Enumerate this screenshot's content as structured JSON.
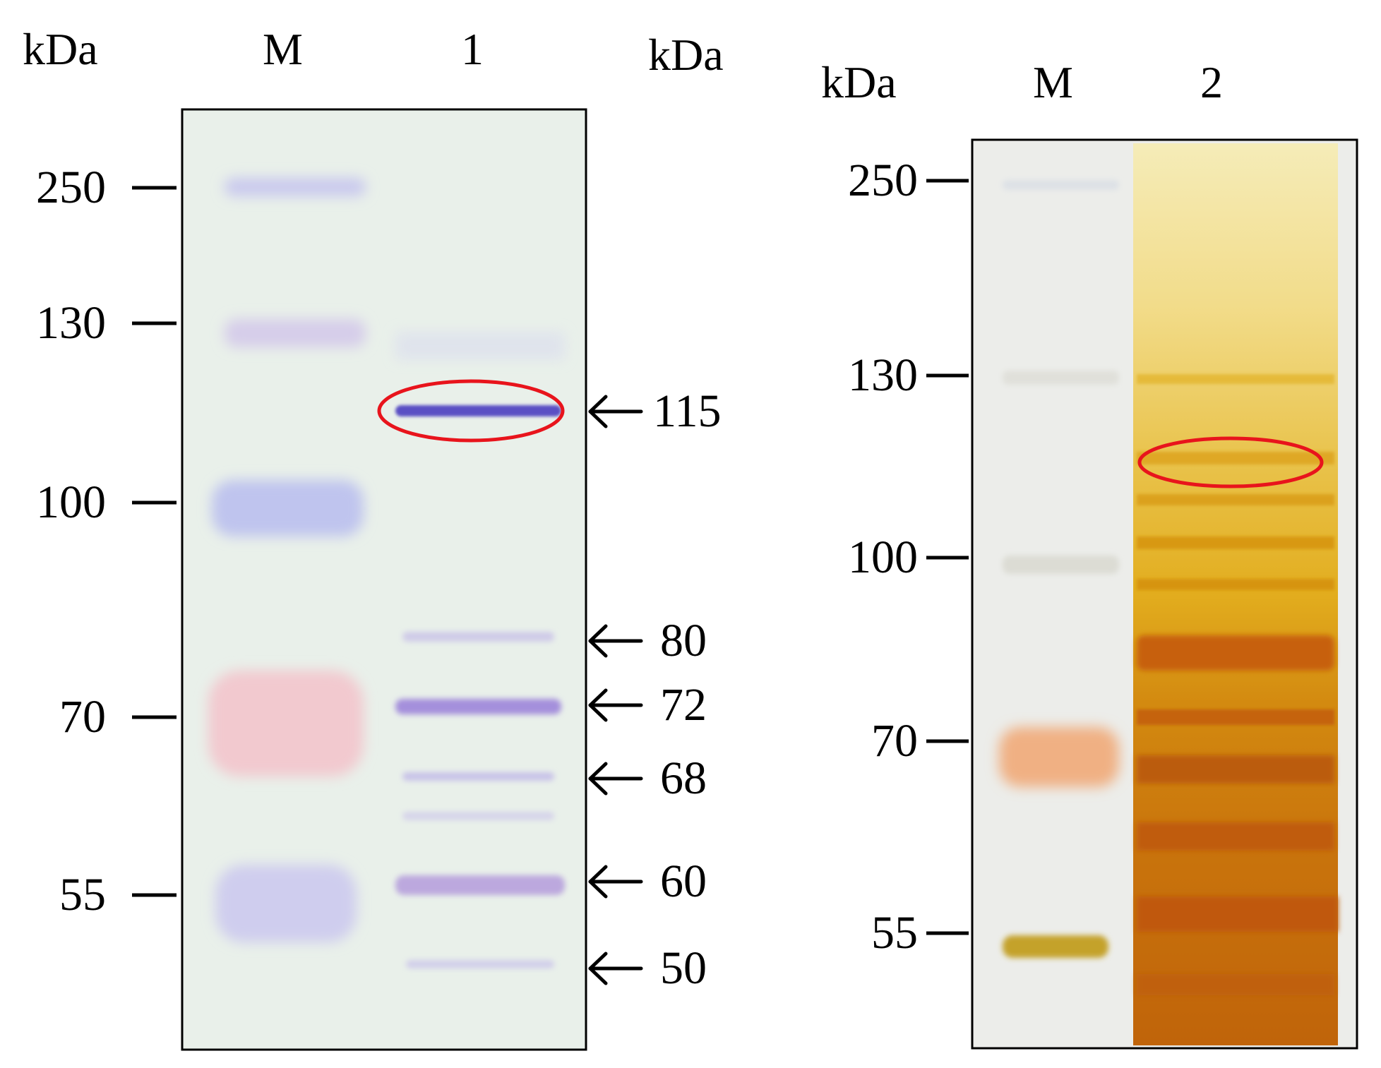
{
  "left_panel": {
    "axis_title_left": "kDa",
    "axis_title_right": "kDa",
    "lanes": [
      "M",
      "1"
    ],
    "marker_ticks": [
      "250",
      "130",
      "100",
      "70",
      "55"
    ],
    "arrow_labels": [
      "115",
      "80",
      "72",
      "68",
      "60",
      "50"
    ]
  },
  "right_panel": {
    "axis_title": "kDa",
    "lanes": [
      "M",
      "2"
    ],
    "marker_ticks": [
      "250",
      "130",
      "100",
      "70",
      "55"
    ]
  },
  "colors": {
    "left_gel_background": "#e9f0ea",
    "right_gel_background": "#ecedea",
    "coomassie_band": "#5a4fc4",
    "silver_stain": "#c88a10",
    "highlight_ellipse": "#e8141c"
  }
}
